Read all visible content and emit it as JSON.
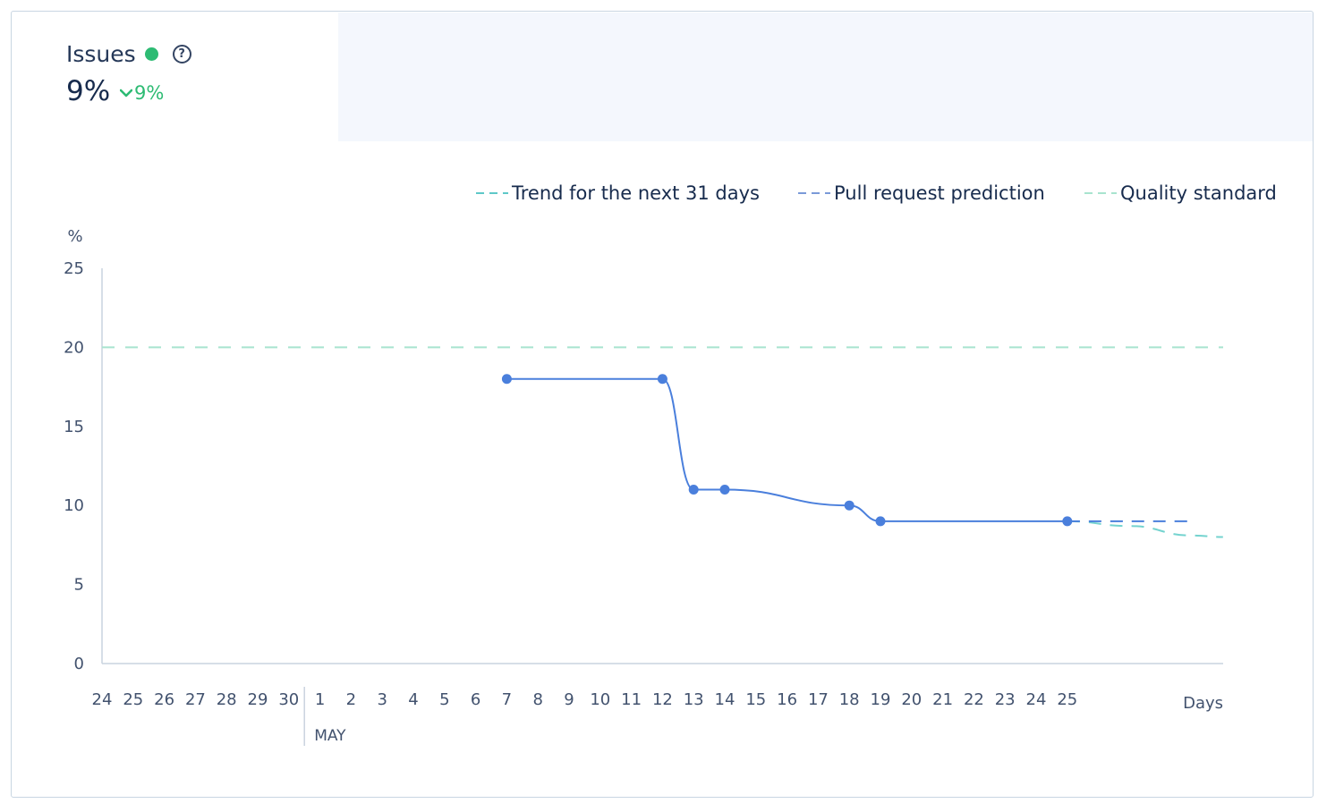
{
  "metric": {
    "title": "Issues",
    "status_color": "#2dbb73",
    "help_icon": "question-circle-icon",
    "value": "9%",
    "delta": "9%",
    "delta_icon": "chevron-down-icon"
  },
  "legend": [
    {
      "label": "Trend for the next 31 days",
      "color": "#5ec8c8"
    },
    {
      "label": "Pull request prediction",
      "color": "#7a9ad8"
    },
    {
      "label": "Quality standard",
      "color": "#a8e4cf"
    }
  ],
  "chart_data": {
    "type": "line",
    "ylabel": "%",
    "xlabel": "Days",
    "ylim": [
      0,
      25
    ],
    "yticks": [
      0,
      5,
      10,
      15,
      20,
      25
    ],
    "x_labels": [
      "24",
      "25",
      "26",
      "27",
      "28",
      "29",
      "30",
      "1",
      "2",
      "3",
      "4",
      "5",
      "6",
      "7",
      "8",
      "9",
      "10",
      "11",
      "12",
      "13",
      "14",
      "15",
      "16",
      "17",
      "18",
      "19",
      "20",
      "21",
      "22",
      "23",
      "24",
      "25"
    ],
    "month_marker": {
      "label": "MAY",
      "at_index": 7
    },
    "quality_standard": 20,
    "series": [
      {
        "values": [
          {
            "x": "May 7",
            "y": 18
          },
          {
            "x": "May 12",
            "y": 18
          },
          {
            "x": "May 13",
            "y": 11
          },
          {
            "x": "May 14",
            "y": 11
          },
          {
            "x": "May 18",
            "y": 10
          },
          {
            "x": "May 19",
            "y": 9
          },
          {
            "x": "May 25",
            "y": 9
          }
        ],
        "color": "#4a7fdc"
      },
      {
        "name": "Pull request prediction",
        "values": [
          {
            "x": "May 25",
            "y": 9
          },
          {
            "x": "May 29",
            "y": 9
          }
        ],
        "color": "#4a7fdc"
      },
      {
        "name": "Trend for the next 31 days",
        "values": [
          {
            "x": "May 25",
            "y": 9
          },
          {
            "x": "May 27",
            "y": 8.7
          },
          {
            "x": "May 29",
            "y": 8.1
          },
          {
            "x": "May 30",
            "y": 8
          }
        ],
        "color": "#74d3cf"
      }
    ]
  }
}
